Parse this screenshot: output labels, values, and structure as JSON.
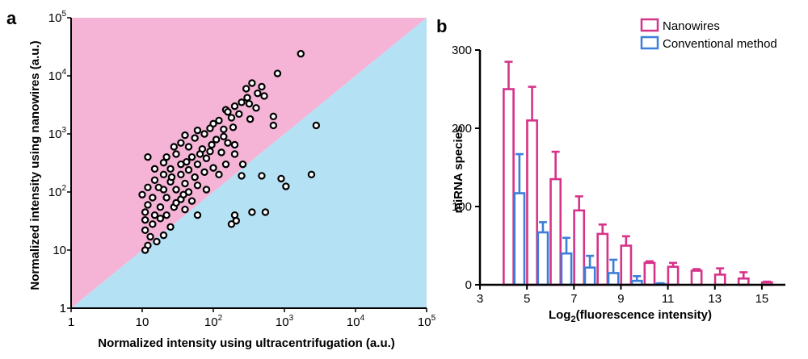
{
  "chart_data": [
    {
      "type": "scatter",
      "panel_letter": "a",
      "scale": "log-log",
      "xlabel": "Normalized intensity using ultracentrifugation (a.u.)",
      "ylabel": "Normalized intensity using nanowires (a.u.)",
      "xlim": [
        1,
        100000
      ],
      "ylim": [
        1,
        100000
      ],
      "x_ticks": [
        {
          "value": 1,
          "base": "1",
          "exp": ""
        },
        {
          "value": 10,
          "base": "10",
          "exp": ""
        },
        {
          "value": 100,
          "base": "10",
          "exp": "2"
        },
        {
          "value": 1000,
          "base": "10",
          "exp": "3"
        },
        {
          "value": 10000,
          "base": "10",
          "exp": "4"
        },
        {
          "value": 100000,
          "base": "10",
          "exp": "5"
        }
      ],
      "y_ticks": [
        {
          "value": 1,
          "base": "1",
          "exp": ""
        },
        {
          "value": 10,
          "base": "10",
          "exp": ""
        },
        {
          "value": 100,
          "base": "10",
          "exp": "2"
        },
        {
          "value": 1000,
          "base": "10",
          "exp": "3"
        },
        {
          "value": 10000,
          "base": "10",
          "exp": "4"
        },
        {
          "value": 100000,
          "base": "10",
          "exp": "5"
        }
      ],
      "regions": {
        "upper_color": "#f5b3d6",
        "lower_color": "#b5e1f5"
      },
      "points": [
        [
          1700,
          24000
        ],
        [
          800,
          11000
        ],
        [
          350,
          7500
        ],
        [
          480,
          6500
        ],
        [
          420,
          5000
        ],
        [
          300,
          4200
        ],
        [
          250,
          3500
        ],
        [
          200,
          3000
        ],
        [
          150,
          2600
        ],
        [
          230,
          2200
        ],
        [
          180,
          1900
        ],
        [
          120,
          1700
        ],
        [
          700,
          2000
        ],
        [
          700,
          1400
        ],
        [
          2800,
          1400
        ],
        [
          100,
          1500
        ],
        [
          90,
          1250
        ],
        [
          140,
          1200
        ],
        [
          60,
          1150
        ],
        [
          75,
          1000
        ],
        [
          40,
          950
        ],
        [
          55,
          850
        ],
        [
          110,
          800
        ],
        [
          160,
          700
        ],
        [
          200,
          650
        ],
        [
          35,
          700
        ],
        [
          28,
          600
        ],
        [
          45,
          600
        ],
        [
          70,
          550
        ],
        [
          90,
          500
        ],
        [
          130,
          480
        ],
        [
          200,
          450
        ],
        [
          30,
          450
        ],
        [
          22,
          400
        ],
        [
          12,
          400
        ],
        [
          50,
          400
        ],
        [
          80,
          380
        ],
        [
          150,
          300
        ],
        [
          260,
          300
        ],
        [
          20,
          320
        ],
        [
          35,
          300
        ],
        [
          60,
          300
        ],
        [
          25,
          250
        ],
        [
          45,
          240
        ],
        [
          100,
          260
        ],
        [
          15,
          250
        ],
        [
          120,
          200
        ],
        [
          20,
          200
        ],
        [
          35,
          200
        ],
        [
          55,
          180
        ],
        [
          75,
          220
        ],
        [
          480,
          190
        ],
        [
          900,
          170
        ],
        [
          1050,
          125
        ],
        [
          2400,
          200
        ],
        [
          250,
          190
        ],
        [
          15,
          160
        ],
        [
          25,
          150
        ],
        [
          40,
          140
        ],
        [
          60,
          130
        ],
        [
          12,
          120
        ],
        [
          20,
          110
        ],
        [
          30,
          110
        ],
        [
          45,
          100
        ],
        [
          80,
          110
        ],
        [
          10,
          90
        ],
        [
          14,
          80
        ],
        [
          22,
          80
        ],
        [
          35,
          75
        ],
        [
          50,
          70
        ],
        [
          12,
          60
        ],
        [
          18,
          55
        ],
        [
          28,
          55
        ],
        [
          40,
          50
        ],
        [
          11,
          45
        ],
        [
          15,
          40
        ],
        [
          22,
          40
        ],
        [
          60,
          40
        ],
        [
          200,
          40
        ],
        [
          350,
          45
        ],
        [
          540,
          45
        ],
        [
          180,
          28
        ],
        [
          210,
          32
        ],
        [
          11,
          33
        ],
        [
          14,
          28
        ],
        [
          11,
          22
        ],
        [
          13,
          17
        ],
        [
          16,
          14
        ],
        [
          12,
          12
        ],
        [
          11,
          10
        ],
        [
          20,
          18
        ],
        [
          25,
          25
        ],
        [
          18,
          35
        ],
        [
          30,
          65
        ],
        [
          38,
          90
        ],
        [
          17,
          120
        ],
        [
          26,
          180
        ],
        [
          42,
          330
        ],
        [
          65,
          450
        ],
        [
          95,
          650
        ],
        [
          140,
          900
        ],
        [
          190,
          1300
        ],
        [
          330,
          1800
        ],
        [
          400,
          2800
        ],
        [
          520,
          4500
        ],
        [
          290,
          6000
        ],
        [
          320,
          3300
        ],
        [
          160,
          2400
        ]
      ]
    },
    {
      "type": "bar",
      "panel_letter": "b",
      "xlabel_main": "Log",
      "xlabel_sub": "2",
      "xlabel_rest": "(fluorescence intensity)",
      "ylabel": "miRNA species",
      "xlim": [
        3,
        16
      ],
      "ylim": [
        0,
        300
      ],
      "x_ticks": [
        "3",
        "5",
        "7",
        "9",
        "11",
        "13",
        "15"
      ],
      "y_ticks": [
        "0",
        "100",
        "200",
        "300"
      ],
      "series": [
        {
          "name": "Nanowires",
          "color": "#d6338a",
          "x": [
            4.5,
            5.5,
            6.5,
            7.5,
            8.5,
            9.5,
            10.5,
            11.5,
            12.5,
            13.5,
            14.5,
            15.5
          ],
          "values": [
            250,
            210,
            135,
            95,
            65,
            50,
            28,
            23,
            18,
            13,
            8,
            3
          ],
          "errors": [
            35,
            43,
            35,
            18,
            12,
            12,
            2,
            5,
            2,
            8,
            8,
            1
          ]
        },
        {
          "name": "Conventional method",
          "color": "#3b7fd9",
          "x": [
            4.5,
            5.5,
            6.5,
            7.5,
            8.5,
            9.5,
            10.5,
            11.5,
            12.5,
            13.5,
            14.5,
            15.5
          ],
          "values": [
            117,
            67,
            40,
            22,
            15,
            5,
            1,
            0,
            0,
            0,
            0,
            0
          ],
          "errors": [
            50,
            13,
            20,
            15,
            17,
            6,
            1,
            0,
            0,
            0,
            0,
            0
          ]
        }
      ]
    }
  ]
}
